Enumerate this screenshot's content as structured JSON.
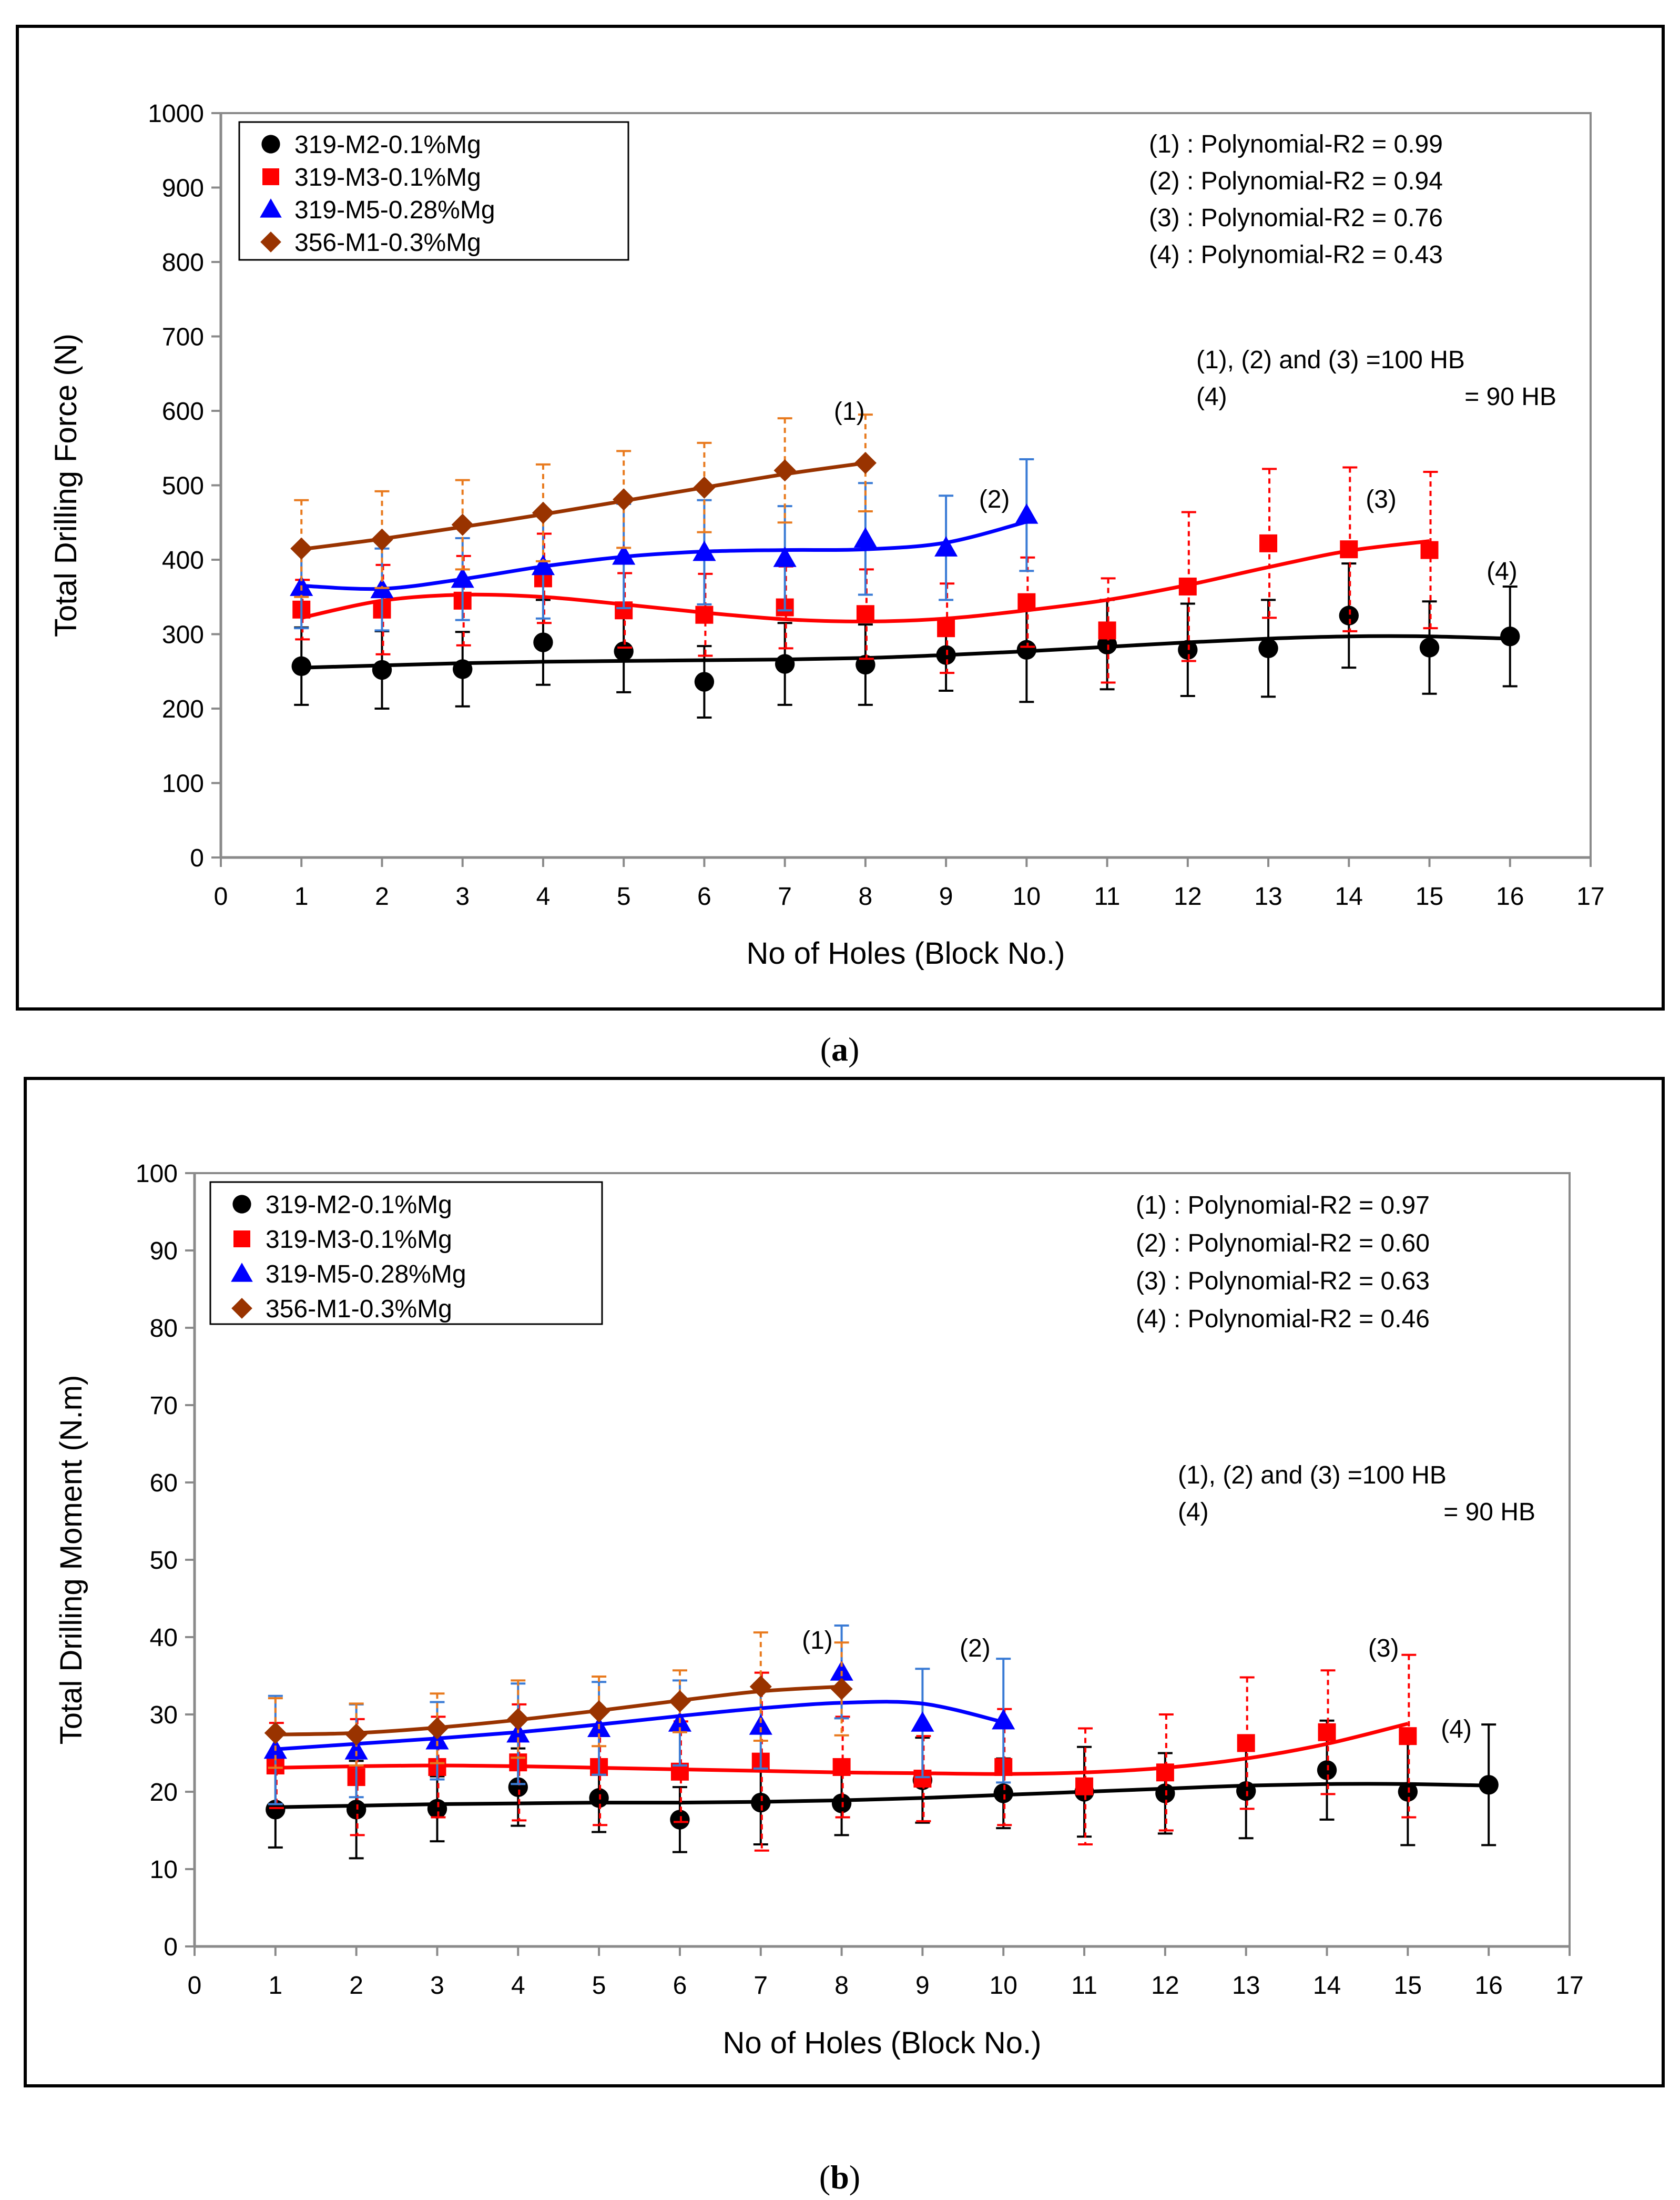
{
  "panels": [
    {
      "caption_letter": "a",
      "chart_data": {
        "type": "line",
        "title": "",
        "xlabel": "No of Holes (Block No.)",
        "ylabel": "Total Drilling Force (N)",
        "xlim": [
          0,
          17
        ],
        "ylim": [
          0,
          1000
        ],
        "xticks": [
          "0",
          "1",
          "2",
          "3",
          "4",
          "5",
          "6",
          "7",
          "8",
          "9",
          "10",
          "11",
          "12",
          "13",
          "14",
          "15",
          "16",
          "17"
        ],
        "yticks": [
          "0",
          "100",
          "200",
          "300",
          "400",
          "500",
          "600",
          "700",
          "800",
          "900",
          "1000"
        ],
        "series": [
          {
            "name": "319-M2-0.1%Mg",
            "color": "#000000",
            "marker": "circle",
            "x": [
              1,
              2,
              3,
              4,
              5,
              6,
              7,
              8,
              9,
              10,
              11,
              12,
              13,
              14,
              15,
              16
            ],
            "y": [
              257,
              252,
              253,
              289,
              277,
              236,
              260,
              259,
              272,
              279,
              286,
              279,
              281,
              325,
              282,
              297
            ],
            "err": [
              52,
              52,
              50,
              57,
              55,
              48,
              55,
              54,
              48,
              70,
              60,
              62,
              65,
              70,
              62,
              67
            ],
            "fit": [
              [
                1,
                255
              ],
              [
                2,
                258
              ],
              [
                3,
                261
              ],
              [
                4,
                263
              ],
              [
                5,
                264
              ],
              [
                6,
                265
              ],
              [
                7,
                266
              ],
              [
                8,
                268
              ],
              [
                9,
                272
              ],
              [
                10,
                277
              ],
              [
                11,
                283
              ],
              [
                12,
                289
              ],
              [
                13,
                294
              ],
              [
                14,
                297
              ],
              [
                15,
                297
              ],
              [
                16,
                294
              ]
            ]
          },
          {
            "name": "319-M3-0.1%Mg",
            "color": "#ff0000",
            "marker": "square",
            "x": [
              1,
              2,
              3,
              4,
              5,
              6,
              7,
              8,
              9,
              10,
              11,
              12,
              13,
              14,
              15
            ],
            "y": [
              333,
              333,
              345,
              375,
              332,
              326,
              336,
              327,
              308,
              343,
              305,
              364,
              422,
              414,
              413
            ],
            "err": [
              40,
              60,
              60,
              60,
              50,
              55,
              55,
              60,
              60,
              60,
              70,
              100,
              100,
              110,
              105
            ],
            "fit": [
              [
                1,
                322
              ],
              [
                2,
                345
              ],
              [
                3,
                353
              ],
              [
                4,
                350
              ],
              [
                5,
                340
              ],
              [
                6,
                329
              ],
              [
                7,
                320
              ],
              [
                8,
                317
              ],
              [
                9,
                321
              ],
              [
                10,
                332
              ],
              [
                11,
                346
              ],
              [
                12,
                366
              ],
              [
                13,
                390
              ],
              [
                14,
                412
              ],
              [
                15,
                425
              ]
            ]
          },
          {
            "name": "319-M5-0.28%Mg",
            "color": "#0000ff",
            "marker": "triangle",
            "x": [
              1,
              2,
              3,
              4,
              5,
              6,
              7,
              8,
              9,
              10
            ],
            "y": [
              363,
              360,
              374,
              391,
              405,
              410,
              402,
              428,
              416,
              460
            ],
            "err": [
              55,
              55,
              55,
              70,
              70,
              70,
              70,
              75,
              70,
              75
            ],
            "fit": [
              [
                1,
                365
              ],
              [
                2,
                361
              ],
              [
                3,
                374
              ],
              [
                4,
                391
              ],
              [
                5,
                404
              ],
              [
                6,
                411
              ],
              [
                7,
                413
              ],
              [
                8,
                414
              ],
              [
                9,
                423
              ],
              [
                10,
                451
              ]
            ]
          },
          {
            "name": "356-M1-0.3%Mg",
            "color": "#993300",
            "marker": "diamond",
            "x": [
              1,
              2,
              3,
              4,
              5,
              6,
              7,
              8
            ],
            "y": [
              415,
              427,
              447,
              463,
              481,
              497,
              520,
              530
            ],
            "err": [
              65,
              65,
              60,
              65,
              65,
              60,
              70,
              65
            ],
            "fit": [
              [
                1,
                414
              ],
              [
                2,
                428
              ],
              [
                3,
                444
              ],
              [
                4,
                461
              ],
              [
                5,
                479
              ],
              [
                6,
                497
              ],
              [
                7,
                515
              ],
              [
                8,
                530
              ]
            ]
          }
        ],
        "stats": [
          "(1) : Polynomial-R2 = 0.99",
          "(2) : Polynomial-R2 = 0.94",
          "(3) : Polynomial-R2 = 0.76",
          "(4) : Polynomial-R2 = 0.43"
        ],
        "hardness": [
          {
            "left": "(1), (2) and (3) =100 HB",
            "right": ""
          },
          {
            "left": "(4)",
            "right": "= 90 HB"
          }
        ],
        "curve_labels": [
          {
            "text": "(1)",
            "x": 7.8,
            "y": 588
          },
          {
            "text": "(2)",
            "x": 9.6,
            "y": 470
          },
          {
            "text": "(3)",
            "x": 14.4,
            "y": 470
          },
          {
            "text": "(4)",
            "x": 15.9,
            "y": 373
          }
        ]
      }
    },
    {
      "caption_letter": "b",
      "chart_data": {
        "type": "line",
        "title": "",
        "xlabel": "No of Holes (Block No.)",
        "ylabel": "Total Drilling Moment (N.m)",
        "xlim": [
          0,
          17
        ],
        "ylim": [
          0,
          100
        ],
        "xticks": [
          "0",
          "1",
          "2",
          "3",
          "4",
          "5",
          "6",
          "7",
          "8",
          "9",
          "10",
          "11",
          "12",
          "13",
          "14",
          "15",
          "16",
          "17"
        ],
        "yticks": [
          "0",
          "10",
          "20",
          "30",
          "40",
          "50",
          "60",
          "70",
          "80",
          "90",
          "100"
        ],
        "series": [
          {
            "name": "319-M2-0.1%Mg",
            "color": "#000000",
            "marker": "circle",
            "x": [
              1,
              2,
              3,
              4,
              5,
              6,
              7,
              8,
              9,
              10,
              11,
              12,
              13,
              14,
              15,
              16
            ],
            "y": [
              17.7,
              17.7,
              17.8,
              20.6,
              19.2,
              16.4,
              18.6,
              18.5,
              21.5,
              19.8,
              20.0,
              19.8,
              20.1,
              22.8,
              20.0,
              20.9
            ],
            "err": [
              4.9,
              6.3,
              4.2,
              5.0,
              4.4,
              4.2,
              5.4,
              4.1,
              5.5,
              4.5,
              5.8,
              5.2,
              6.1,
              6.4,
              6.9,
              7.8
            ],
            "fit": [
              [
                1,
                18.0
              ],
              [
                2,
                18.2
              ],
              [
                3,
                18.4
              ],
              [
                4,
                18.5
              ],
              [
                5,
                18.6
              ],
              [
                6,
                18.6
              ],
              [
                7,
                18.7
              ],
              [
                8,
                18.9
              ],
              [
                9,
                19.2
              ],
              [
                10,
                19.6
              ],
              [
                11,
                20.0
              ],
              [
                12,
                20.4
              ],
              [
                13,
                20.8
              ],
              [
                14,
                21.0
              ],
              [
                15,
                21.0
              ],
              [
                16,
                20.8
              ]
            ]
          },
          {
            "name": "319-M3-0.1%Mg",
            "color": "#ff0000",
            "marker": "square",
            "x": [
              1,
              2,
              3,
              4,
              5,
              6,
              7,
              8,
              9,
              10,
              11,
              12,
              13,
              14,
              15
            ],
            "y": [
              23.4,
              21.9,
              23.2,
              23.8,
              23.2,
              22.6,
              23.9,
              23.2,
              21.7,
              23.2,
              20.7,
              22.5,
              26.3,
              27.7,
              27.2
            ],
            "err": [
              5.5,
              7.5,
              6.5,
              7.5,
              7.5,
              6.5,
              11.5,
              6.5,
              5.5,
              7.5,
              7.5,
              7.5,
              8.5,
              8.0,
              10.5
            ],
            "fit": [
              [
                1,
                23.1
              ],
              [
                2,
                23.3
              ],
              [
                3,
                23.4
              ],
              [
                4,
                23.3
              ],
              [
                5,
                23.1
              ],
              [
                6,
                22.9
              ],
              [
                7,
                22.7
              ],
              [
                8,
                22.5
              ],
              [
                9,
                22.4
              ],
              [
                10,
                22.3
              ],
              [
                11,
                22.5
              ],
              [
                12,
                23.1
              ],
              [
                13,
                24.3
              ],
              [
                14,
                26.2
              ],
              [
                15,
                28.8
              ]
            ]
          },
          {
            "name": "319-M5-0.28%Mg",
            "color": "#0000ff",
            "marker": "triangle",
            "x": [
              1,
              2,
              3,
              4,
              5,
              6,
              7,
              8,
              9,
              10
            ],
            "y": [
              25.4,
              25.3,
              26.6,
              27.5,
              28.2,
              28.9,
              28.5,
              35.5,
              28.9,
              29.2
            ],
            "err": [
              7.0,
              6.0,
              5.0,
              6.5,
              6.0,
              5.5,
              5.5,
              6.0,
              7.0,
              8.0
            ],
            "fit": [
              [
                1,
                25.5
              ],
              [
                2,
                26.2
              ],
              [
                3,
                26.9
              ],
              [
                4,
                27.7
              ],
              [
                5,
                28.7
              ],
              [
                6,
                29.8
              ],
              [
                7,
                30.8
              ],
              [
                8,
                31.5
              ],
              [
                9,
                31.4
              ],
              [
                10,
                29.0
              ]
            ]
          },
          {
            "name": "356-M1-0.3%Mg",
            "color": "#993300",
            "marker": "diamond",
            "x": [
              1,
              2,
              3,
              4,
              5,
              6,
              7,
              8
            ],
            "y": [
              27.6,
              27.4,
              28.2,
              29.4,
              30.4,
              31.7,
              33.6,
              33.3
            ],
            "err": [
              4.5,
              4.0,
              4.5,
              5.0,
              4.5,
              4.0,
              7.0,
              6.0
            ],
            "fit": [
              [
                1,
                27.4
              ],
              [
                2,
                27.6
              ],
              [
                3,
                28.3
              ],
              [
                4,
                29.3
              ],
              [
                5,
                30.5
              ],
              [
                6,
                31.8
              ],
              [
                7,
                33.0
              ],
              [
                8,
                33.6
              ]
            ]
          }
        ],
        "stats": [
          "(1) : Polynomial-R2 = 0.97",
          "(2) : Polynomial-R2 = 0.60",
          "(3) : Polynomial-R2 = 0.63",
          "(4) : Polynomial-R2 = 0.46"
        ],
        "hardness": [
          {
            "left": "(1), (2) and (3) =100 HB",
            "right": ""
          },
          {
            "left": "(4)",
            "right": "= 90 HB"
          }
        ],
        "curve_labels": [
          {
            "text": "(1)",
            "x": 7.7,
            "y": 38.5
          },
          {
            "text": "(2)",
            "x": 9.65,
            "y": 37.5
          },
          {
            "text": "(3)",
            "x": 14.7,
            "y": 37.5
          },
          {
            "text": "(4)",
            "x": 15.6,
            "y": 27.0
          }
        ]
      }
    }
  ]
}
